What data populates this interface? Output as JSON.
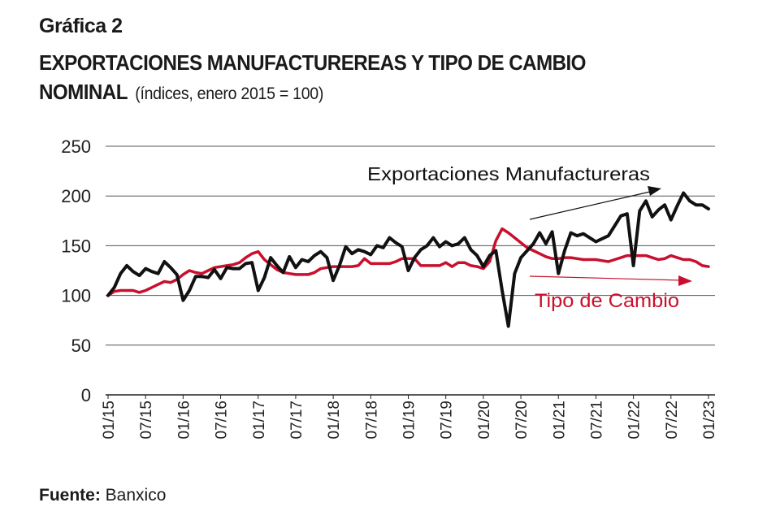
{
  "header": {
    "label": "Gráfica 2",
    "title_line1": "EXPORTACIONES MANUFACTUREREAS Y TIPO DE CAMBIO",
    "title_line2": "NOMINAL",
    "subtitle": "(índices, enero 2015 = 100)"
  },
  "footer": {
    "source_label": "Fuente:",
    "source_value": "Banxico"
  },
  "chart_data": {
    "type": "line",
    "title": "EXPORTACIONES MANUFACTUREREAS Y TIPO DE CAMBIO NOMINAL",
    "subtitle": "(índices, enero 2015 = 100)",
    "xlabel": "",
    "ylabel": "",
    "ylim": [
      0,
      250
    ],
    "yticks": [
      "0",
      "50",
      "100",
      "150",
      "200",
      "250"
    ],
    "xtick_labels": [
      "01/15",
      "07/15",
      "01/16",
      "07/16",
      "01/17",
      "07/17",
      "01/18",
      "07/18",
      "01/19",
      "07/19",
      "01/20",
      "07/20",
      "01/21",
      "07/21",
      "01/22",
      "07/22",
      "01/23"
    ],
    "grid": "horizontal",
    "x": [
      "01/15",
      "02/15",
      "03/15",
      "04/15",
      "05/15",
      "06/15",
      "07/15",
      "08/15",
      "09/15",
      "10/15",
      "11/15",
      "12/15",
      "01/16",
      "02/16",
      "03/16",
      "04/16",
      "05/16",
      "06/16",
      "07/16",
      "08/16",
      "09/16",
      "10/16",
      "11/16",
      "12/16",
      "01/17",
      "02/17",
      "03/17",
      "04/17",
      "05/17",
      "06/17",
      "07/17",
      "08/17",
      "09/17",
      "10/17",
      "11/17",
      "12/17",
      "01/18",
      "02/18",
      "03/18",
      "04/18",
      "05/18",
      "06/18",
      "07/18",
      "08/18",
      "09/18",
      "10/18",
      "11/18",
      "12/18",
      "01/19",
      "02/19",
      "03/19",
      "04/19",
      "05/19",
      "06/19",
      "07/19",
      "08/19",
      "09/19",
      "10/19",
      "11/19",
      "12/19",
      "01/20",
      "02/20",
      "03/20",
      "04/20",
      "05/20",
      "06/20",
      "07/20",
      "08/20",
      "09/20",
      "10/20",
      "11/20",
      "12/20",
      "01/21",
      "02/21",
      "03/21",
      "04/21",
      "05/21",
      "06/21",
      "07/21",
      "08/21",
      "09/21",
      "10/21",
      "11/21",
      "12/21",
      "01/22",
      "02/22",
      "03/22",
      "04/22",
      "05/22",
      "06/22",
      "07/22",
      "08/22",
      "09/22",
      "10/22",
      "11/22",
      "12/22",
      "01/23"
    ],
    "series": [
      {
        "name": "Exportaciones Manufactureras",
        "color": "#111111",
        "values": [
          100,
          108,
          122,
          130,
          124,
          120,
          127,
          124,
          122,
          134,
          128,
          121,
          95,
          105,
          119,
          119,
          118,
          126,
          117,
          128,
          127,
          127,
          132,
          133,
          105,
          118,
          138,
          130,
          123,
          139,
          128,
          136,
          134,
          140,
          144,
          138,
          115,
          130,
          149,
          142,
          146,
          144,
          141,
          150,
          148,
          158,
          153,
          149,
          125,
          138,
          146,
          150,
          158,
          149,
          154,
          150,
          152,
          158,
          146,
          140,
          129,
          140,
          145,
          105,
          69,
          122,
          138,
          145,
          152,
          163,
          152,
          164,
          122,
          145,
          163,
          160,
          162,
          158,
          154,
          157,
          160,
          170,
          180,
          182,
          130,
          185,
          195,
          179,
          186,
          191,
          176,
          190,
          203,
          195,
          191,
          191,
          187
        ]
      },
      {
        "name": "Tipo de Cambio",
        "color": "#c8102e",
        "values": [
          100,
          104,
          105,
          105,
          105,
          103,
          105,
          108,
          111,
          114,
          113,
          116,
          121,
          125,
          123,
          122,
          125,
          128,
          129,
          130,
          131,
          133,
          138,
          142,
          144,
          136,
          131,
          126,
          123,
          122,
          121,
          121,
          121,
          123,
          127,
          128,
          129,
          129,
          129,
          129,
          130,
          137,
          132,
          132,
          132,
          132,
          134,
          137,
          137,
          137,
          130,
          130,
          130,
          130,
          133,
          129,
          133,
          133,
          130,
          129,
          127,
          134,
          155,
          167,
          163,
          158,
          153,
          148,
          145,
          142,
          139,
          137,
          137,
          138,
          138,
          137,
          136,
          136,
          136,
          135,
          134,
          136,
          138,
          140,
          140,
          140,
          140,
          138,
          136,
          137,
          140,
          138,
          136,
          136,
          134,
          130,
          129
        ]
      }
    ],
    "annotations": [
      {
        "text": "Exportaciones Manufactureras",
        "color": "#111111",
        "arrow": "upward trend"
      },
      {
        "text": "Tipo de Cambio",
        "color": "#c8102e",
        "arrow": "flat/slightly downward trend"
      }
    ]
  }
}
